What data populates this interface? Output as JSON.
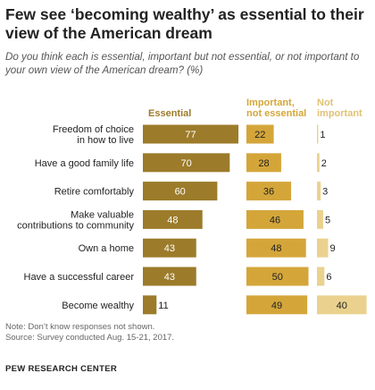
{
  "title": "Few see ‘becoming wealthy’ as essential to their view of the American dream",
  "subtitle": "Do you think each is essential, important but not essential, or not important to your own view of the American dream? (%)",
  "chart_data": {
    "type": "bar",
    "title": "Few see ‘becoming wealthy’ as essential to their view of the American dream",
    "categories": [
      [
        "Freedom of choice",
        "in how to live"
      ],
      [
        "Have a good family life"
      ],
      [
        "Retire comfortably"
      ],
      [
        "Make valuable",
        "contributions to community"
      ],
      [
        "Own a home"
      ],
      [
        "Have a successful career"
      ],
      [
        "Become wealthy"
      ]
    ],
    "series": [
      {
        "name": "Essential",
        "header": [
          "Essential"
        ],
        "color": "#9c7b2a",
        "label_color": "#ffffff",
        "values": [
          77,
          70,
          60,
          48,
          43,
          43,
          11
        ]
      },
      {
        "name": "Important, not essential",
        "header": [
          "Important,",
          "not essential"
        ],
        "color": "#d4a63a",
        "label_color": "#222222",
        "values": [
          22,
          28,
          36,
          46,
          48,
          50,
          49
        ]
      },
      {
        "name": "Not important",
        "header": [
          "Not",
          "important"
        ],
        "color": "#ead28e",
        "label_color": "#222222",
        "values": [
          1,
          2,
          3,
          5,
          9,
          6,
          40
        ]
      }
    ],
    "header_colors": [
      "#9c7b2a",
      "#d4a63a",
      "#e0c274"
    ],
    "ylim": [
      0,
      100
    ]
  },
  "footer": {
    "note": "Note: Don’t know responses not shown.",
    "source": "Source: Survey conducted Aug. 15-21, 2017.",
    "brand": "PEW RESEARCH CENTER"
  }
}
